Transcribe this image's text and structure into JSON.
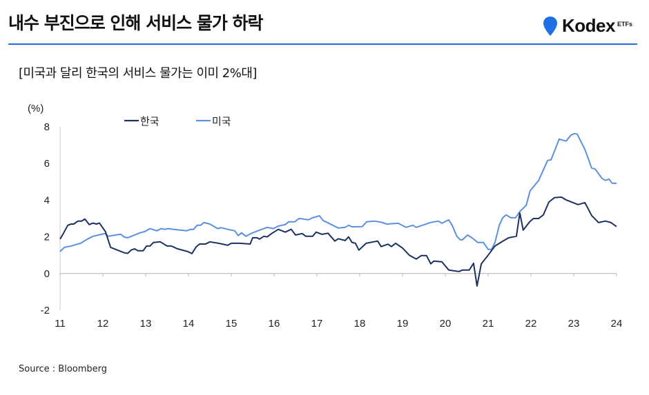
{
  "header": {
    "title": "내수 부진으로 인해 서비스 물가 하락",
    "logo_text": "Kodex",
    "logo_sub": "ETFs"
  },
  "subtitle": "[미국과 달리 한국의 서비스 물가는 이미 2%대]",
  "source": "Source : Bloomberg",
  "colors": {
    "accent": "#1f6fe5",
    "korea": "#1b2f63",
    "us": "#5b8fe0"
  },
  "chart_data": {
    "type": "line",
    "title": "",
    "ylabel": "(%)",
    "xlabel": "",
    "xlim": [
      11,
      24
    ],
    "ylim": [
      -2,
      8
    ],
    "xticks": [
      "11",
      "12",
      "13",
      "14",
      "15",
      "16",
      "17",
      "18",
      "19",
      "20",
      "21",
      "22",
      "23",
      "24"
    ],
    "yticks": [
      "8",
      "6",
      "4",
      "2",
      "0",
      "-2"
    ],
    "legend_position": "top-left",
    "series": [
      {
        "name": "한국",
        "points": [
          [
            11.0,
            1.88
          ],
          [
            11.05,
            2.07
          ],
          [
            11.18,
            2.63
          ],
          [
            11.26,
            2.7
          ],
          [
            11.32,
            2.7
          ],
          [
            11.42,
            2.86
          ],
          [
            11.5,
            2.86
          ],
          [
            11.58,
            2.97
          ],
          [
            11.68,
            2.67
          ],
          [
            11.77,
            2.75
          ],
          [
            11.85,
            2.7
          ],
          [
            11.92,
            2.75
          ],
          [
            12.06,
            2.29
          ],
          [
            12.18,
            1.43
          ],
          [
            12.34,
            1.28
          ],
          [
            12.5,
            1.13
          ],
          [
            12.58,
            1.1
          ],
          [
            12.66,
            1.28
          ],
          [
            12.74,
            1.35
          ],
          [
            12.82,
            1.24
          ],
          [
            12.94,
            1.24
          ],
          [
            13.02,
            1.5
          ],
          [
            13.1,
            1.5
          ],
          [
            13.18,
            1.69
          ],
          [
            13.34,
            1.73
          ],
          [
            13.5,
            1.5
          ],
          [
            13.6,
            1.5
          ],
          [
            13.74,
            1.35
          ],
          [
            13.98,
            1.2
          ],
          [
            14.08,
            1.09
          ],
          [
            14.18,
            1.46
          ],
          [
            14.26,
            1.61
          ],
          [
            14.4,
            1.61
          ],
          [
            14.5,
            1.73
          ],
          [
            14.7,
            1.65
          ],
          [
            14.92,
            1.54
          ],
          [
            15.0,
            1.65
          ],
          [
            15.2,
            1.65
          ],
          [
            15.44,
            1.61
          ],
          [
            15.5,
            1.95
          ],
          [
            15.6,
            1.95
          ],
          [
            15.66,
            1.88
          ],
          [
            15.76,
            2.03
          ],
          [
            15.84,
            2.0
          ],
          [
            15.94,
            2.18
          ],
          [
            16.1,
            2.41
          ],
          [
            16.26,
            2.26
          ],
          [
            16.4,
            2.41
          ],
          [
            16.5,
            2.1
          ],
          [
            16.66,
            2.18
          ],
          [
            16.74,
            2.03
          ],
          [
            16.9,
            2.03
          ],
          [
            16.98,
            2.26
          ],
          [
            17.12,
            2.14
          ],
          [
            17.26,
            2.2
          ],
          [
            17.42,
            1.77
          ],
          [
            17.5,
            1.9
          ],
          [
            17.66,
            1.8
          ],
          [
            17.74,
            2.0
          ],
          [
            17.82,
            1.7
          ],
          [
            17.9,
            1.65
          ],
          [
            17.98,
            1.28
          ],
          [
            18.15,
            1.65
          ],
          [
            18.42,
            1.77
          ],
          [
            18.5,
            1.47
          ],
          [
            18.66,
            1.6
          ],
          [
            18.74,
            1.47
          ],
          [
            18.84,
            1.65
          ],
          [
            19.0,
            1.39
          ],
          [
            19.16,
            1.0
          ],
          [
            19.32,
            0.79
          ],
          [
            19.44,
            0.98
          ],
          [
            19.56,
            0.98
          ],
          [
            19.66,
            0.53
          ],
          [
            19.73,
            0.68
          ],
          [
            19.92,
            0.64
          ],
          [
            20.08,
            0.19
          ],
          [
            20.32,
            0.11
          ],
          [
            20.4,
            0.19
          ],
          [
            20.56,
            0.19
          ],
          [
            20.66,
            0.56
          ],
          [
            20.74,
            -0.68
          ],
          [
            20.84,
            0.53
          ],
          [
            21.0,
            1.0
          ],
          [
            21.16,
            1.5
          ],
          [
            21.37,
            1.8
          ],
          [
            21.48,
            1.95
          ],
          [
            21.66,
            2.03
          ],
          [
            21.74,
            3.3
          ],
          [
            21.82,
            2.37
          ],
          [
            21.97,
            2.82
          ],
          [
            22.06,
            3.0
          ],
          [
            22.18,
            3.0
          ],
          [
            22.29,
            3.2
          ],
          [
            22.42,
            3.9
          ],
          [
            22.55,
            4.14
          ],
          [
            22.71,
            4.17
          ],
          [
            22.82,
            4.02
          ],
          [
            23.1,
            3.76
          ],
          [
            23.26,
            3.87
          ],
          [
            23.42,
            3.16
          ],
          [
            23.58,
            2.78
          ],
          [
            23.74,
            2.86
          ],
          [
            23.87,
            2.78
          ],
          [
            24.0,
            2.56
          ]
        ]
      },
      {
        "name": "미국",
        "points": [
          [
            11.0,
            1.2
          ],
          [
            11.1,
            1.43
          ],
          [
            11.26,
            1.5
          ],
          [
            11.37,
            1.58
          ],
          [
            11.48,
            1.65
          ],
          [
            11.64,
            1.88
          ],
          [
            11.77,
            2.03
          ],
          [
            11.9,
            2.1
          ],
          [
            12.05,
            2.18
          ],
          [
            12.13,
            2.03
          ],
          [
            12.29,
            2.1
          ],
          [
            12.42,
            2.14
          ],
          [
            12.5,
            1.99
          ],
          [
            12.58,
            1.95
          ],
          [
            12.74,
            2.1
          ],
          [
            12.87,
            2.22
          ],
          [
            12.98,
            2.29
          ],
          [
            13.1,
            2.45
          ],
          [
            13.26,
            2.33
          ],
          [
            13.36,
            2.45
          ],
          [
            13.45,
            2.41
          ],
          [
            13.52,
            2.45
          ],
          [
            13.8,
            2.37
          ],
          [
            13.96,
            2.33
          ],
          [
            14.04,
            2.41
          ],
          [
            14.12,
            2.41
          ],
          [
            14.2,
            2.63
          ],
          [
            14.28,
            2.63
          ],
          [
            14.36,
            2.78
          ],
          [
            14.5,
            2.7
          ],
          [
            14.68,
            2.45
          ],
          [
            14.76,
            2.5
          ],
          [
            14.92,
            2.41
          ],
          [
            15.08,
            2.33
          ],
          [
            15.16,
            2.07
          ],
          [
            15.24,
            2.22
          ],
          [
            15.34,
            2.03
          ],
          [
            15.46,
            2.18
          ],
          [
            15.62,
            2.33
          ],
          [
            15.84,
            2.52
          ],
          [
            15.98,
            2.45
          ],
          [
            16.1,
            2.59
          ],
          [
            16.26,
            2.67
          ],
          [
            16.34,
            2.82
          ],
          [
            16.48,
            2.82
          ],
          [
            16.58,
            3.0
          ],
          [
            16.69,
            2.97
          ],
          [
            16.8,
            2.93
          ],
          [
            16.9,
            3.04
          ],
          [
            17.06,
            3.15
          ],
          [
            17.14,
            2.9
          ],
          [
            17.34,
            2.67
          ],
          [
            17.5,
            2.48
          ],
          [
            17.66,
            2.52
          ],
          [
            17.74,
            2.63
          ],
          [
            17.82,
            2.55
          ],
          [
            18.06,
            2.56
          ],
          [
            18.16,
            2.82
          ],
          [
            18.34,
            2.86
          ],
          [
            18.5,
            2.8
          ],
          [
            18.63,
            2.7
          ],
          [
            18.9,
            2.74
          ],
          [
            19.08,
            2.52
          ],
          [
            19.24,
            2.63
          ],
          [
            19.32,
            2.52
          ],
          [
            19.65,
            2.78
          ],
          [
            19.84,
            2.86
          ],
          [
            19.92,
            2.74
          ],
          [
            20.08,
            2.93
          ],
          [
            20.16,
            2.63
          ],
          [
            20.27,
            2.03
          ],
          [
            20.35,
            1.84
          ],
          [
            20.4,
            1.84
          ],
          [
            20.52,
            2.1
          ],
          [
            20.62,
            1.95
          ],
          [
            20.76,
            1.69
          ],
          [
            20.89,
            1.69
          ],
          [
            21.0,
            1.32
          ],
          [
            21.08,
            1.32
          ],
          [
            21.16,
            1.69
          ],
          [
            21.26,
            2.63
          ],
          [
            21.34,
            3.04
          ],
          [
            21.42,
            3.2
          ],
          [
            21.53,
            3.04
          ],
          [
            21.64,
            3.04
          ],
          [
            21.74,
            3.38
          ],
          [
            21.89,
            3.72
          ],
          [
            21.98,
            4.51
          ],
          [
            22.18,
            5.08
          ],
          [
            22.39,
            6.17
          ],
          [
            22.47,
            6.2
          ],
          [
            22.66,
            7.33
          ],
          [
            22.82,
            7.22
          ],
          [
            22.94,
            7.56
          ],
          [
            23.02,
            7.63
          ],
          [
            23.08,
            7.6
          ],
          [
            23.26,
            6.77
          ],
          [
            23.42,
            5.75
          ],
          [
            23.5,
            5.7
          ],
          [
            23.66,
            5.19
          ],
          [
            23.74,
            5.08
          ],
          [
            23.82,
            5.15
          ],
          [
            23.9,
            4.92
          ],
          [
            24.0,
            4.92
          ]
        ]
      }
    ]
  }
}
